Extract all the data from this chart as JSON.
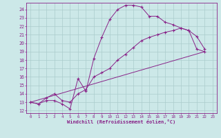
{
  "xlabel": "Windchill (Refroidissement éolien,°C)",
  "xlim": [
    -0.5,
    23.5
  ],
  "ylim": [
    11.7,
    24.8
  ],
  "xticks": [
    0,
    1,
    2,
    3,
    4,
    5,
    6,
    7,
    8,
    9,
    10,
    11,
    12,
    13,
    14,
    15,
    16,
    17,
    18,
    19,
    20,
    21,
    22,
    23
  ],
  "yticks": [
    12,
    13,
    14,
    15,
    16,
    17,
    18,
    19,
    20,
    21,
    22,
    23,
    24
  ],
  "bg_color": "#cce8e8",
  "line_color": "#882288",
  "grid_color": "#aacccc",
  "line1_x": [
    0,
    1,
    2,
    3,
    4,
    5,
    6,
    7,
    8,
    9,
    10,
    11,
    12,
    13,
    14,
    15,
    16,
    17,
    18,
    19,
    20,
    21,
    22
  ],
  "line1_y": [
    13.0,
    12.8,
    13.2,
    13.2,
    12.8,
    12.2,
    15.8,
    14.3,
    18.2,
    20.7,
    22.8,
    24.0,
    24.5,
    24.5,
    24.3,
    23.2,
    23.2,
    22.5,
    22.2,
    21.8,
    21.5,
    19.3,
    19.0
  ],
  "line2_x": [
    0,
    1,
    2,
    3,
    4,
    5,
    6,
    7,
    8,
    9,
    10,
    11,
    12,
    13,
    14,
    15,
    16,
    17,
    18,
    19,
    20,
    21,
    22
  ],
  "line2_y": [
    13.0,
    12.8,
    13.5,
    14.0,
    13.2,
    13.0,
    14.0,
    14.5,
    16.0,
    16.5,
    17.0,
    18.0,
    18.7,
    19.5,
    20.3,
    20.7,
    21.0,
    21.3,
    21.5,
    21.8,
    21.5,
    20.8,
    19.3
  ],
  "line3_x": [
    0,
    22
  ],
  "line3_y": [
    13.0,
    19.0
  ]
}
